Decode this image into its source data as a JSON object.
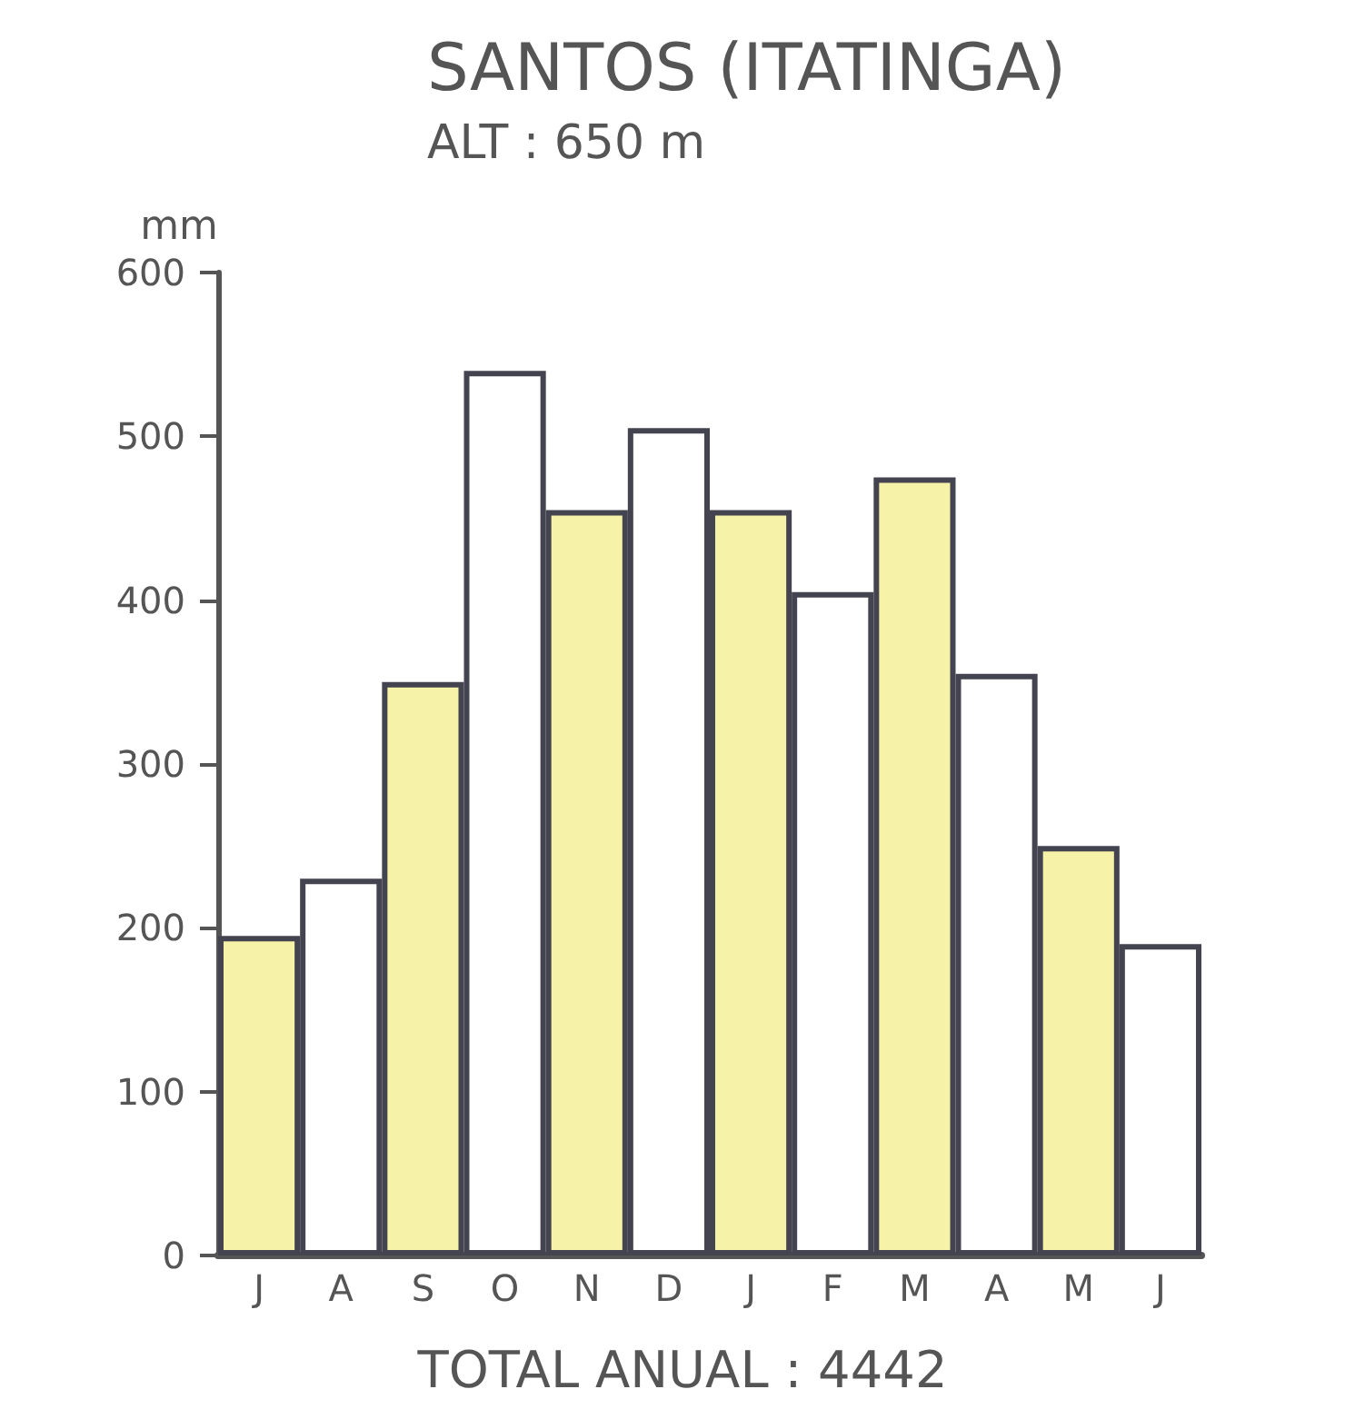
{
  "chart_data": {
    "type": "bar",
    "title": "SANTOS (ITATINGA)",
    "subtitle": "ALT : 650 m",
    "ylabel": "mm",
    "annotations": [
      "TOTAL ANUAL : 4442"
    ],
    "categories": [
      "J",
      "A",
      "S",
      "O",
      "N",
      "D",
      "J",
      "F",
      "M",
      "A",
      "M",
      "J"
    ],
    "values": [
      195,
      230,
      350,
      540,
      455,
      505,
      455,
      405,
      475,
      355,
      250,
      190
    ],
    "colors": [
      "#f6f2a8",
      "#ffffff",
      "#f6f2a8",
      "#ffffff",
      "#f6f2a8",
      "#ffffff",
      "#f6f2a8",
      "#ffffff",
      "#f6f2a8",
      "#ffffff",
      "#f6f2a8",
      "#ffffff"
    ],
    "ylim": [
      0,
      600
    ],
    "yticks": [
      0,
      100,
      200,
      300,
      400,
      500,
      600
    ],
    "grid": false
  }
}
